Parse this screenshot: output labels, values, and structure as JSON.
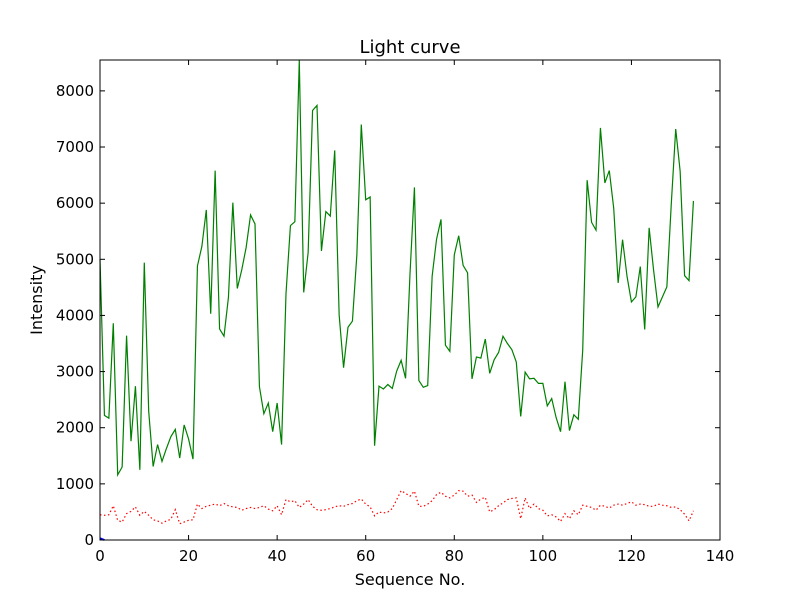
{
  "chart_data": {
    "type": "line",
    "title": "Light curve",
    "xlabel": "Sequence No.",
    "ylabel": "Intensity",
    "xlim": [
      0,
      140
    ],
    "ylim": [
      0,
      8550
    ],
    "xticks": [
      0,
      20,
      40,
      60,
      80,
      100,
      120,
      140
    ],
    "yticks": [
      0,
      1000,
      2000,
      3000,
      4000,
      5000,
      6000,
      7000,
      8000
    ],
    "grid": false,
    "legend": "none",
    "series": [
      {
        "style": "solid",
        "color": "#008000",
        "values": [
          5000,
          2220,
          2170,
          3860,
          1160,
          1300,
          3640,
          1760,
          2740,
          1250,
          4940,
          2290,
          1310,
          1700,
          1400,
          1630,
          1840,
          1970,
          1460,
          2050,
          1800,
          1440,
          4880,
          5230,
          5880,
          4030,
          6580,
          3760,
          3630,
          4320,
          6010,
          4480,
          4810,
          5210,
          5790,
          5630,
          2730,
          2250,
          2440,
          1930,
          2440,
          1700,
          4390,
          5600,
          5670,
          8540,
          4410,
          5120,
          7650,
          7740,
          5150,
          5850,
          5770,
          6940,
          4010,
          3070,
          3790,
          3900,
          5080,
          7400,
          6060,
          6110,
          1680,
          2740,
          2690,
          2770,
          2700,
          3010,
          3200,
          2880,
          4740,
          6280,
          2840,
          2720,
          2750,
          4700,
          5360,
          5710,
          3470,
          3360,
          5080,
          5420,
          4890,
          4760,
          2870,
          3260,
          3240,
          3580,
          2970,
          3210,
          3340,
          3630,
          3500,
          3390,
          3170,
          2200,
          2990,
          2870,
          2880,
          2790,
          2790,
          2390,
          2520,
          2180,
          1930,
          2820,
          1950,
          2230,
          2150,
          3380,
          6410,
          5660,
          5520,
          7340,
          6360,
          6580,
          5910,
          4580,
          5350,
          4700,
          4240,
          4330,
          4870,
          3750,
          5560,
          4810,
          4150,
          4330,
          4510,
          5990,
          7320,
          6570,
          4710,
          4620,
          6040
        ]
      },
      {
        "style": "dotted",
        "color": "#ff0000",
        "values": [
          450,
          440,
          450,
          610,
          350,
          320,
          470,
          510,
          590,
          440,
          510,
          440,
          360,
          340,
          300,
          340,
          370,
          540,
          290,
          320,
          350,
          360,
          640,
          560,
          600,
          620,
          640,
          610,
          650,
          610,
          590,
          580,
          530,
          560,
          580,
          560,
          580,
          610,
          550,
          520,
          610,
          450,
          720,
          680,
          700,
          580,
          640,
          720,
          600,
          540,
          530,
          540,
          560,
          590,
          610,
          600,
          630,
          650,
          700,
          730,
          640,
          590,
          430,
          500,
          480,
          500,
          560,
          720,
          880,
          830,
          780,
          870,
          600,
          600,
          640,
          700,
          810,
          850,
          780,
          750,
          800,
          880,
          870,
          780,
          800,
          670,
          730,
          760,
          500,
          540,
          610,
          660,
          720,
          740,
          750,
          380,
          750,
          560,
          640,
          560,
          530,
          430,
          450,
          410,
          330,
          470,
          380,
          520,
          450,
          620,
          600,
          580,
          530,
          620,
          600,
          570,
          620,
          640,
          620,
          650,
          680,
          620,
          640,
          630,
          600,
          600,
          640,
          620,
          610,
          580,
          590,
          540,
          460,
          340,
          520
        ]
      },
      {
        "style": "solid",
        "color": "#0000ff",
        "values": [
          30,
          0
        ]
      }
    ]
  }
}
